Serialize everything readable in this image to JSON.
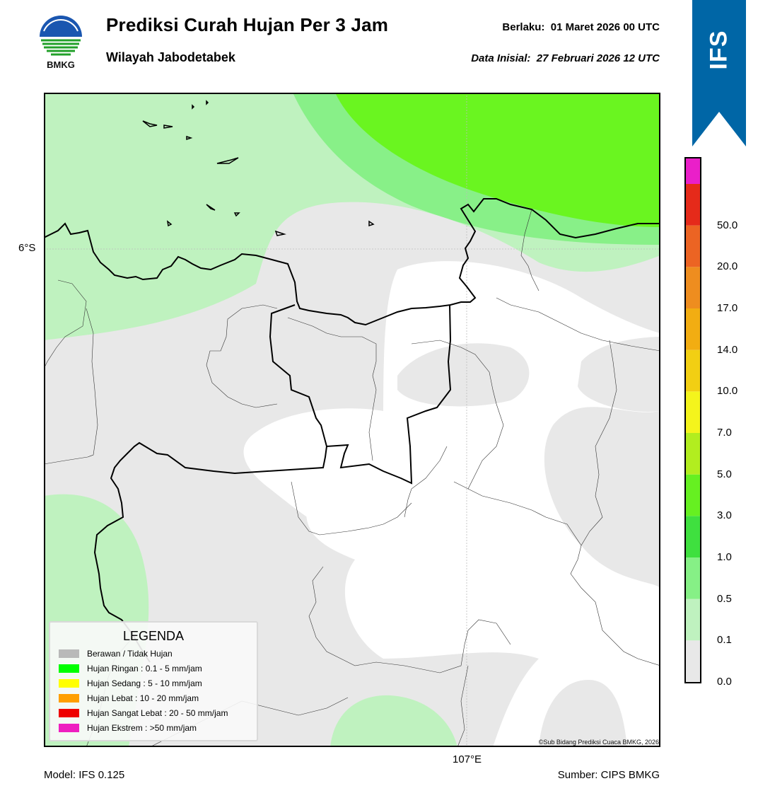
{
  "header": {
    "logo_text": "BMKG",
    "title": "Prediksi Curah Hujan Per 3 Jam",
    "subtitle": "Wilayah Jabodetabek",
    "valid": "Berlaku:  01 Maret 2026 00 UTC",
    "initial": "Data Inisial:  27 Februari 2026 12 UTC"
  },
  "badge": {
    "label": "IFS",
    "color": "#0066a6"
  },
  "map": {
    "lat_label": "6°S",
    "lon_label": "107°E",
    "copyright": "©Sub Bidang Prediksi Cuaca BMKG, 2026"
  },
  "footer": {
    "model": "Model: IFS 0.125",
    "source": "Sumber: CIPS BMKG"
  },
  "colorbar": {
    "levels": [
      "0.0",
      "0.1",
      "0.5",
      "1.0",
      "3.0",
      "5.0",
      "7.0",
      "10.0",
      "14.0",
      "17.0",
      "20.0",
      "50.0"
    ],
    "colors": [
      "#e8e8e8",
      "#bff2bf",
      "#86f086",
      "#3fe03f",
      "#66f021",
      "#b2ed1f",
      "#f4f41c",
      "#f2cf13",
      "#f2ad12",
      "#ee8d1f",
      "#ec6423",
      "#e52a1a",
      "#ea1fc9"
    ]
  },
  "legend": {
    "title": "LEGENDA",
    "items": [
      {
        "label": "Berawan / Tidak Hujan",
        "color": "#b9b9b9"
      },
      {
        "label": "Hujan Ringan : 0.1 - 5 mm/jam",
        "color": "#00ff00"
      },
      {
        "label": "Hujan Sedang : 5 - 10 mm/jam",
        "color": "#ffff00"
      },
      {
        "label": "Hujan Lebat : 10 - 20 mm/jam",
        "color": "#ff9f00"
      },
      {
        "label": "Hujan Sangat Lebat : 20 - 50 mm/jam",
        "color": "#ee0000"
      },
      {
        "label": "Hujan Ekstrem : >50 mm/jam",
        "color": "#ee1fc0"
      }
    ]
  }
}
